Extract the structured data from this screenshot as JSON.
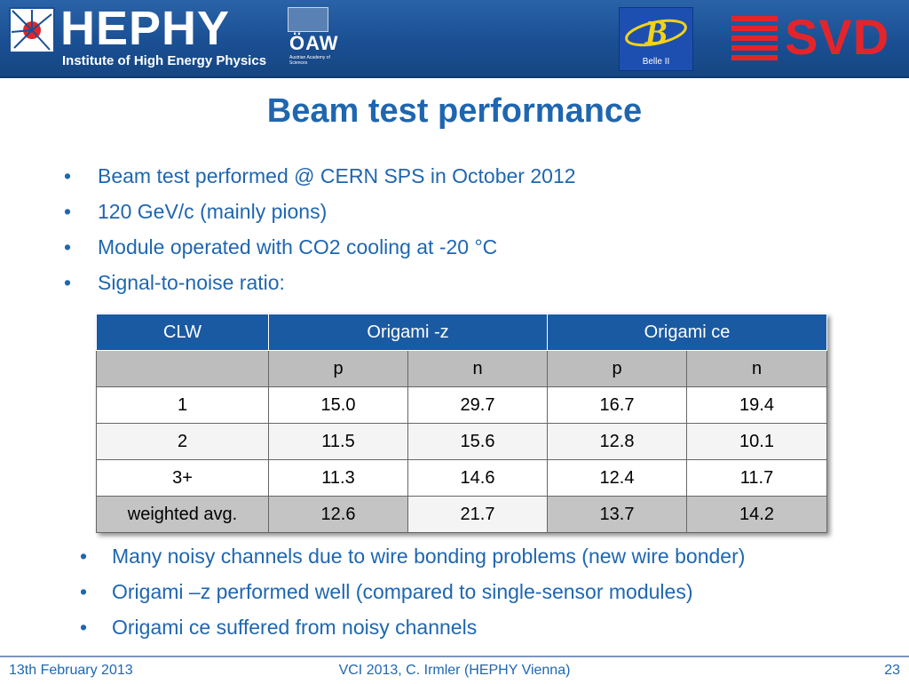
{
  "header": {
    "logo_name": "HEPHY",
    "logo_subtitle": "Institute of High Energy Physics",
    "oaw_name": "ÖAW",
    "oaw_small": "Austrian Academy of Sciences",
    "belle_label": "Belle II",
    "svd_name": "SVD",
    "colors": {
      "banner": "#1a4f93",
      "svd_red": "#e3252b"
    }
  },
  "slide": {
    "title": "Beam test performance",
    "bullets_top": [
      "Beam test performed @ CERN SPS in October 2012",
      "120 GeV/c (mainly pions)",
      "Module operated with CO2 cooling at -20 °C",
      "Signal-to-noise ratio:"
    ],
    "bullets_bottom": [
      "Many noisy channels due to wire bonding problems (new wire bonder)",
      "Origami –z performed well (compared to single-sensor modules)",
      "Origami ce suffered from noisy channels"
    ],
    "text_color": "#1f66b0"
  },
  "table": {
    "headers": [
      "CLW",
      "Origami -z",
      "Origami ce"
    ],
    "subheaders": [
      "",
      "p",
      "n",
      "p",
      "n"
    ],
    "rows": [
      [
        "1",
        "15.0",
        "29.7",
        "16.7",
        "19.4"
      ],
      [
        "2",
        "11.5",
        "15.6",
        "12.8",
        "10.1"
      ],
      [
        "3+",
        "11.3",
        "14.6",
        "12.4",
        "11.7"
      ],
      [
        "weighted avg.",
        "12.6",
        "21.7",
        "13.7",
        "14.2"
      ]
    ]
  },
  "footer": {
    "date": "13th February 2013",
    "conference": "VCI 2013, C. Irmler (HEPHY Vienna)",
    "page": "23"
  }
}
